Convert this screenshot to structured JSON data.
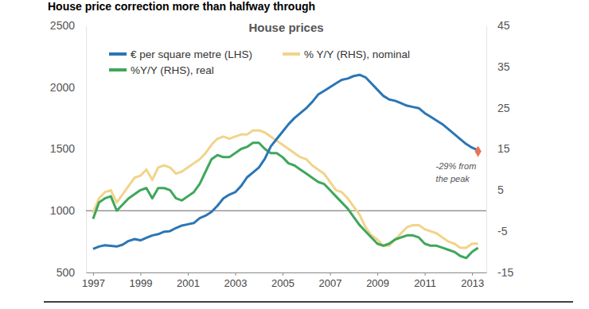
{
  "chart_data": {
    "type": "line",
    "title": "House price correction more than halfway through",
    "subtitle": "House prices",
    "x": [
      1997,
      1997.25,
      1997.5,
      1997.75,
      1998,
      1998.25,
      1998.5,
      1998.75,
      1999,
      1999.25,
      1999.5,
      1999.75,
      2000,
      2000.25,
      2000.5,
      2000.75,
      2001,
      2001.25,
      2001.5,
      2001.75,
      2002,
      2002.25,
      2002.5,
      2002.75,
      2003,
      2003.25,
      2003.5,
      2003.75,
      2004,
      2004.25,
      2004.5,
      2004.75,
      2005,
      2005.25,
      2005.5,
      2005.75,
      2006,
      2006.25,
      2006.5,
      2006.75,
      2007,
      2007.25,
      2007.5,
      2007.75,
      2008,
      2008.25,
      2008.5,
      2008.75,
      2009,
      2009.25,
      2009.5,
      2009.75,
      2010,
      2010.25,
      2010.5,
      2010.75,
      2011,
      2011.25,
      2011.5,
      2011.75,
      2012,
      2012.25,
      2012.5,
      2012.75,
      2013,
      2013.25
    ],
    "series": [
      {
        "name": "€ per square metre (LHS)",
        "color": "#2b76b5",
        "axis": "y",
        "values": [
          690,
          710,
          720,
          715,
          710,
          725,
          755,
          770,
          760,
          780,
          800,
          810,
          830,
          835,
          860,
          880,
          890,
          900,
          940,
          960,
          990,
          1040,
          1100,
          1130,
          1150,
          1200,
          1270,
          1310,
          1350,
          1420,
          1520,
          1580,
          1640,
          1700,
          1750,
          1790,
          1830,
          1880,
          1940,
          1970,
          2000,
          2030,
          2060,
          2070,
          2090,
          2100,
          2080,
          2030,
          1980,
          1930,
          1900,
          1890,
          1870,
          1850,
          1840,
          1830,
          1790,
          1760,
          1730,
          1700,
          1660,
          1620,
          1580,
          1540,
          1510,
          1490
        ]
      },
      {
        "name": "% Y/Y (RHS), nominal",
        "color": "#f1d48a",
        "axis": "y2",
        "values": [
          -0.5,
          3,
          4.5,
          5,
          2,
          4,
          6,
          8,
          8.5,
          10,
          7.5,
          10.5,
          11,
          10.5,
          9,
          9.5,
          10.5,
          11.5,
          12.5,
          14,
          16,
          17.5,
          18,
          17.5,
          18,
          18.5,
          18.5,
          19.5,
          19.5,
          19,
          18,
          17,
          16,
          15,
          14,
          13,
          12.5,
          11,
          10,
          9,
          7,
          5,
          4.5,
          3,
          1,
          -1,
          -4,
          -6,
          -7,
          -8.5,
          -8.5,
          -7,
          -5.5,
          -4,
          -3.5,
          -3.5,
          -4.5,
          -5,
          -5.5,
          -6.5,
          -7.5,
          -8,
          -9,
          -9,
          -8,
          -8
        ]
      },
      {
        "name": "%Y/Y (RHS), real",
        "color": "#3ea75c",
        "axis": "y2",
        "values": [
          -2,
          2,
          3,
          3.5,
          0,
          1.5,
          3,
          4,
          5,
          5.5,
          3,
          5.5,
          5.5,
          5,
          3,
          2.5,
          3.5,
          4.5,
          6.5,
          9.5,
          12.5,
          13.5,
          13,
          13,
          14,
          15,
          15.5,
          16.5,
          16.5,
          15,
          14,
          14,
          13,
          11.5,
          11,
          10,
          9,
          8,
          7,
          6.5,
          5,
          3.5,
          2,
          0.5,
          -1.5,
          -3.5,
          -5,
          -6.5,
          -8,
          -8.5,
          -8,
          -7,
          -6.5,
          -6,
          -6,
          -6.5,
          -8,
          -8.5,
          -8.5,
          -9,
          -9.5,
          -10,
          -11,
          -11.5,
          -10,
          -9
        ]
      }
    ],
    "xlim": [
      1996.7,
      2013.6
    ],
    "xticks": [
      1997,
      1999,
      2001,
      2003,
      2005,
      2007,
      2009,
      2011,
      2013
    ],
    "ylim": [
      500,
      2500
    ],
    "yticks": [
      500,
      1000,
      1500,
      2000,
      2500
    ],
    "y2lim": [
      -15,
      45
    ],
    "y2ticks": [
      -15,
      -5,
      5,
      15,
      25,
      35,
      45
    ],
    "hlines": [
      1000
    ],
    "grid": false,
    "legend": "top",
    "annotations": [
      {
        "text": [
          "-29% from",
          "the peak"
        ],
        "x": 2013.25,
        "y": 1480,
        "color": "#e8735a",
        "marker": "diamond"
      }
    ]
  }
}
